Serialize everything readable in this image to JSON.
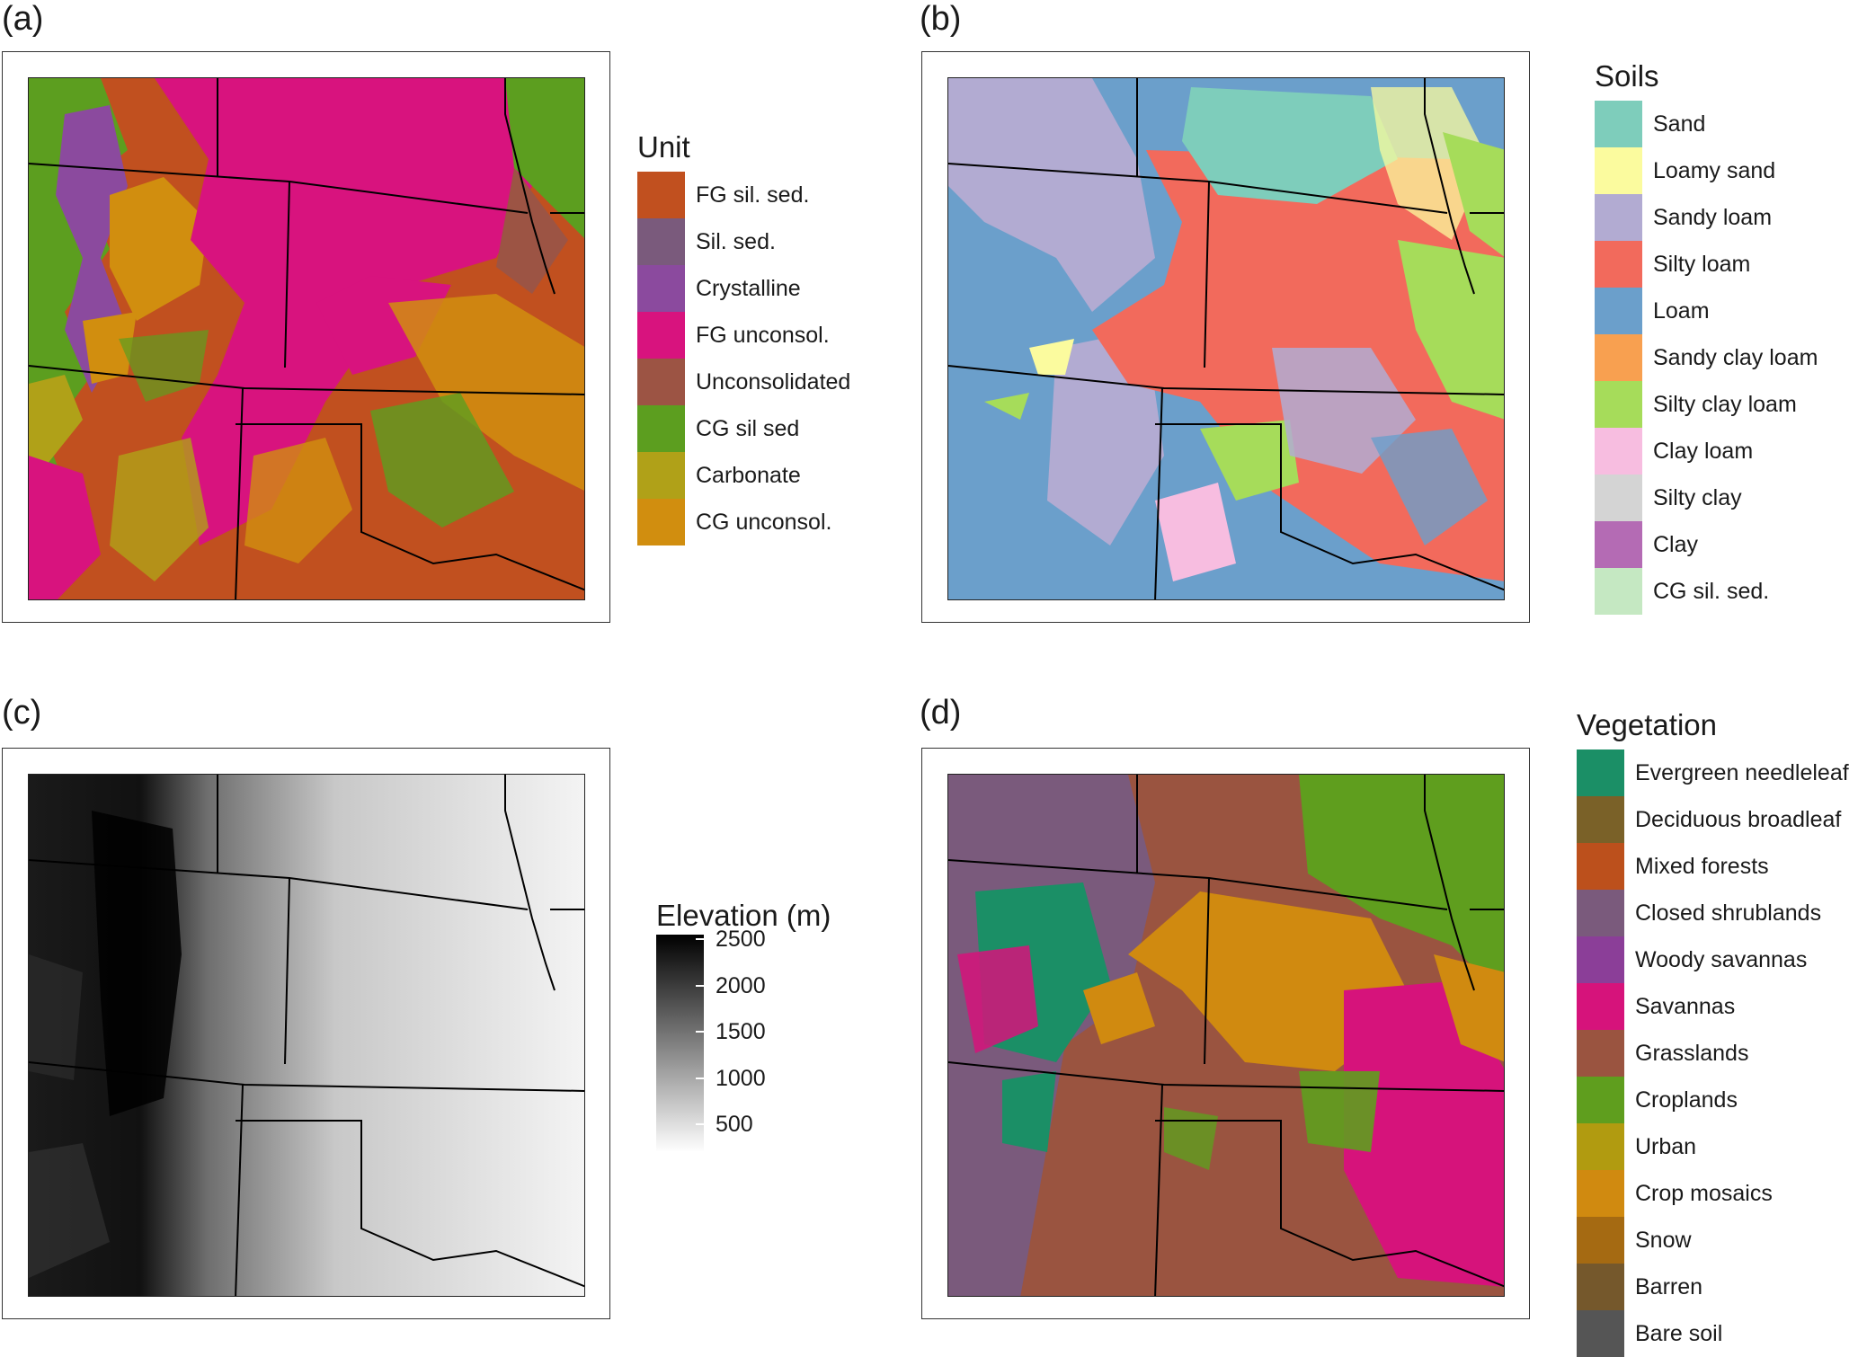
{
  "panels": {
    "a": {
      "label": "(a)"
    },
    "b": {
      "label": "(b)"
    },
    "c": {
      "label": "(c)"
    },
    "d": {
      "label": "(d)"
    }
  },
  "legend_unit": {
    "title": "Unit",
    "items": [
      {
        "label": "FG sil. sed.",
        "color": "#c1501f"
      },
      {
        "label": "Sil. sed.",
        "color": "#7a5a7c"
      },
      {
        "label": "Crystalline",
        "color": "#8b4a9e"
      },
      {
        "label": "FG unconsol.",
        "color": "#d8137e"
      },
      {
        "label": "Unconsolidated",
        "color": "#9c5444"
      },
      {
        "label": "CG sil sed",
        "color": "#5c9e1f"
      },
      {
        "label": "Carbonate",
        "color": "#b0a118"
      },
      {
        "label": "CG unconsol.",
        "color": "#d18e0f"
      }
    ]
  },
  "legend_soils": {
    "title": "Soils",
    "items": [
      {
        "label": "Sand",
        "color": "#7ecdbb"
      },
      {
        "label": "Loamy sand",
        "color": "#fbfb9e"
      },
      {
        "label": "Sandy loam",
        "color": "#b2abd2"
      },
      {
        "label": "Silty  loam",
        "color": "#f26a5c"
      },
      {
        "label": "Loam",
        "color": "#6b9fcb"
      },
      {
        "label": "Sandy clay loam",
        "color": "#f8a050"
      },
      {
        "label": "Silty clay loam",
        "color": "#a6dc5a"
      },
      {
        "label": "Clay loam",
        "color": "#f7bde0"
      },
      {
        "label": "Silty clay",
        "color": "#d4d4d4"
      },
      {
        "label": "Clay",
        "color": "#b46bb4"
      },
      {
        "label": "CG sil. sed.",
        "color": "#c5e8c2"
      }
    ]
  },
  "legend_elevation": {
    "title": "Elevation (m)",
    "ticks": [
      {
        "label": "2500",
        "value": 2500
      },
      {
        "label": "2000",
        "value": 2000
      },
      {
        "label": "1500",
        "value": 1500
      },
      {
        "label": "1000",
        "value": 1000
      },
      {
        "label": "500",
        "value": 500
      }
    ],
    "range": [
      200,
      2550
    ],
    "color_high": "#000000",
    "color_low": "#ffffff"
  },
  "legend_vegetation": {
    "title": "Vegetation",
    "items": [
      {
        "label": "Evergreen needleleaf",
        "color": "#1b8f66"
      },
      {
        "label": "Deciduous broadleaf",
        "color": "#7a6128"
      },
      {
        "label": "Mixed  forests",
        "color": "#bc501c"
      },
      {
        "label": "Closed  shrublands",
        "color": "#7a5a7c"
      },
      {
        "label": "Woody savannas",
        "color": "#8b3e98"
      },
      {
        "label": "Savannas",
        "color": "#d6137b"
      },
      {
        "label": "Grasslands",
        "color": "#9a5440"
      },
      {
        "label": "Croplands",
        "color": "#5f9e1e"
      },
      {
        "label": "Urban",
        "color": "#b19b10"
      },
      {
        "label": "Crop mosaics",
        "color": "#d08a10"
      },
      {
        "label": "Snow",
        "color": "#a56a12"
      },
      {
        "label": "Barren",
        "color": "#75582c"
      },
      {
        "label": "Bare soil",
        "color": "#555555"
      }
    ]
  }
}
